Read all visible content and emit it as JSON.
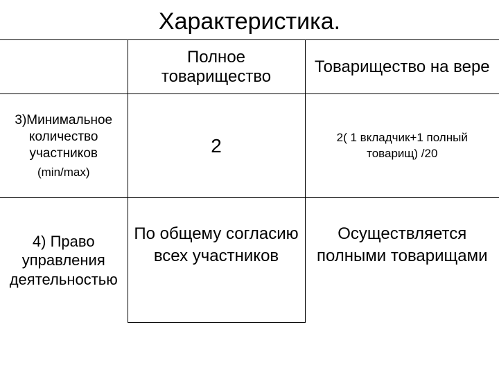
{
  "title": "Характеристика.",
  "header": {
    "col2": "Полное товарищество",
    "col3": "Товарищество на вере"
  },
  "row3": {
    "label_main": "3)Минимальное количество участников",
    "label_sub": "(min/max)",
    "col2": "2",
    "col3": "2( 1 вкладчик+1 полный товарищ) /20"
  },
  "row4": {
    "label": "4)  Право управления деятельностью",
    "col2": "По общему согласию всех участников",
    "col3": "Осуществляется полными товарищами"
  },
  "colors": {
    "background": "#ffffff",
    "text": "#000000",
    "border": "#000000"
  },
  "fontsizes": {
    "title": 34,
    "header": 24,
    "row3_label": 19,
    "row3_sub": 17,
    "row3_num": 28,
    "row3_note": 17,
    "row4_label": 22,
    "row4_cell": 24
  }
}
